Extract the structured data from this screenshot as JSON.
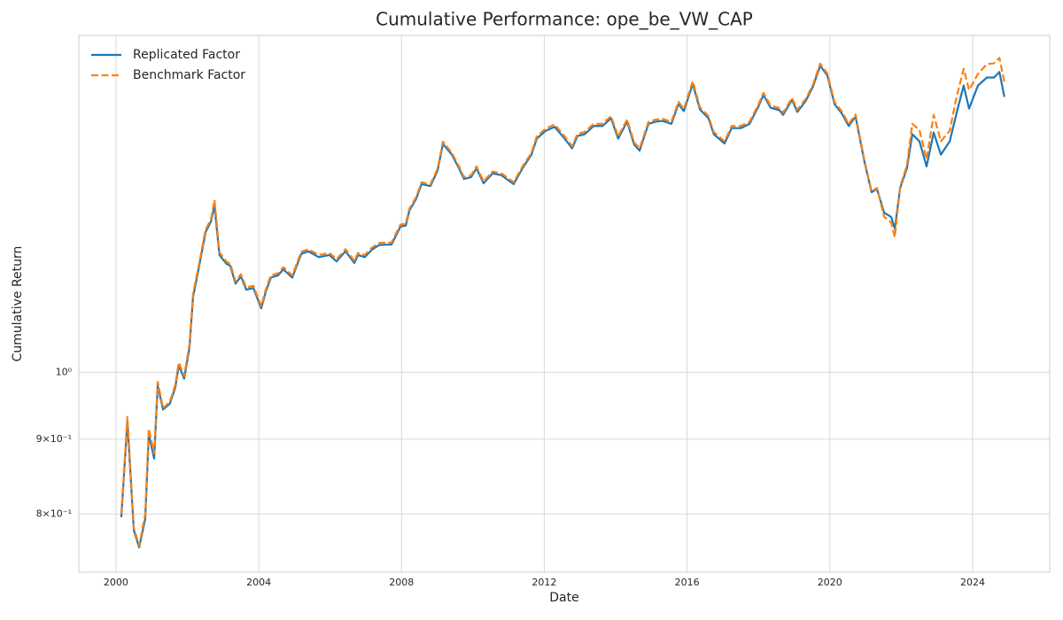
{
  "chart_data": {
    "type": "line",
    "title": "Cumulative Performance: ope_be_VW_CAP",
    "x_label": "Date",
    "y_label": "Cumulative Return",
    "yscale": "log",
    "grid": true,
    "legend": "upper left",
    "xlim": [
      1998.96,
      2026.16
    ],
    "xticks": [
      2000,
      2004,
      2008,
      2012,
      2016,
      2020,
      2024
    ],
    "ylim": [
      0.73,
      1.7
    ],
    "yticks": [
      {
        "value": 0.8,
        "label": "8×10⁻¹"
      },
      {
        "value": 0.9,
        "label": "9×10⁻¹"
      },
      {
        "value": 1,
        "label": "10⁰"
      }
    ],
    "x": [
      2000.15,
      2000.32,
      2000.5,
      2000.65,
      2000.82,
      2000.92,
      2001.07,
      2001.17,
      2001.32,
      2001.51,
      2001.66,
      2001.76,
      2001.91,
      2002.06,
      2002.16,
      2002.31,
      2002.51,
      2002.66,
      2002.76,
      2002.9,
      2003.1,
      2003.2,
      2003.35,
      2003.5,
      2003.65,
      2003.85,
      2004.07,
      2004.19,
      2004.34,
      2004.54,
      2004.69,
      2004.94,
      2005.19,
      2005.39,
      2005.68,
      2005.98,
      2006.18,
      2006.43,
      2006.68,
      2006.78,
      2006.97,
      2007.17,
      2007.37,
      2007.72,
      2007.97,
      2008.12,
      2008.22,
      2008.41,
      2008.56,
      2008.81,
      2009.01,
      2009.16,
      2009.41,
      2009.61,
      2009.75,
      2009.95,
      2010.1,
      2010.3,
      2010.55,
      2010.8,
      2011.14,
      2011.39,
      2011.64,
      2011.79,
      2012.04,
      2012.29,
      2012.53,
      2012.78,
      2012.93,
      2013.13,
      2013.38,
      2013.63,
      2013.87,
      2014.07,
      2014.32,
      2014.52,
      2014.67,
      2014.92,
      2015.12,
      2015.31,
      2015.56,
      2015.76,
      2015.91,
      2016.16,
      2016.36,
      2016.6,
      2016.75,
      2017.05,
      2017.25,
      2017.5,
      2017.75,
      2018.0,
      2018.14,
      2018.34,
      2018.59,
      2018.69,
      2018.94,
      2019.09,
      2019.33,
      2019.53,
      2019.73,
      2019.93,
      2020.13,
      2020.33,
      2020.53,
      2020.72,
      2020.97,
      2021.17,
      2021.32,
      2021.52,
      2021.72,
      2021.82,
      2021.97,
      2022.16,
      2022.31,
      2022.51,
      2022.71,
      2022.91,
      2023.11,
      2023.36,
      2023.55,
      2023.75,
      2023.9,
      2024.15,
      2024.4,
      2024.6,
      2024.75,
      2024.89
    ],
    "series": [
      {
        "name": "Replicated Factor",
        "color": "#1f77b4",
        "dash": "solid",
        "values": [
          0.796,
          0.926,
          0.78,
          0.759,
          0.794,
          0.907,
          0.873,
          0.979,
          0.943,
          0.952,
          0.976,
          1.011,
          0.99,
          1.04,
          1.126,
          1.175,
          1.247,
          1.268,
          1.3,
          1.203,
          1.186,
          1.183,
          1.15,
          1.163,
          1.139,
          1.142,
          1.106,
          1.134,
          1.161,
          1.165,
          1.176,
          1.161,
          1.205,
          1.21,
          1.199,
          1.203,
          1.191,
          1.21,
          1.188,
          1.203,
          1.199,
          1.213,
          1.222,
          1.223,
          1.258,
          1.26,
          1.29,
          1.314,
          1.345,
          1.341,
          1.374,
          1.433,
          1.409,
          1.379,
          1.356,
          1.36,
          1.379,
          1.347,
          1.368,
          1.364,
          1.345,
          1.379,
          1.409,
          1.445,
          1.463,
          1.472,
          1.449,
          1.423,
          1.451,
          1.455,
          1.474,
          1.474,
          1.492,
          1.445,
          1.484,
          1.431,
          1.418,
          1.479,
          1.484,
          1.486,
          1.479,
          1.526,
          1.509,
          1.575,
          1.513,
          1.492,
          1.455,
          1.434,
          1.469,
          1.469,
          1.479,
          1.52,
          1.548,
          1.517,
          1.511,
          1.5,
          1.536,
          1.507,
          1.534,
          1.569,
          1.621,
          1.596,
          1.526,
          1.504,
          1.474,
          1.496,
          1.393,
          1.328,
          1.335,
          1.286,
          1.277,
          1.254,
          1.337,
          1.379,
          1.455,
          1.439,
          1.383,
          1.459,
          1.409,
          1.439,
          1.504,
          1.571,
          1.515,
          1.571,
          1.591,
          1.591,
          1.605,
          1.543
        ]
      },
      {
        "name": "Benchmark Factor",
        "color": "#ff7f0e",
        "dash": "dashed",
        "values": [
          0.8,
          0.932,
          0.783,
          0.761,
          0.8,
          0.915,
          0.88,
          0.985,
          0.945,
          0.955,
          0.98,
          1.016,
          0.994,
          1.045,
          1.132,
          1.18,
          1.252,
          1.272,
          1.312,
          1.208,
          1.19,
          1.187,
          1.154,
          1.167,
          1.143,
          1.146,
          1.11,
          1.138,
          1.165,
          1.169,
          1.18,
          1.165,
          1.209,
          1.214,
          1.203,
          1.207,
          1.195,
          1.214,
          1.192,
          1.207,
          1.203,
          1.217,
          1.226,
          1.227,
          1.262,
          1.264,
          1.294,
          1.318,
          1.349,
          1.345,
          1.378,
          1.438,
          1.413,
          1.383,
          1.36,
          1.364,
          1.383,
          1.351,
          1.372,
          1.368,
          1.349,
          1.383,
          1.413,
          1.45,
          1.468,
          1.478,
          1.454,
          1.428,
          1.456,
          1.46,
          1.479,
          1.479,
          1.497,
          1.45,
          1.489,
          1.436,
          1.423,
          1.484,
          1.489,
          1.491,
          1.484,
          1.531,
          1.514,
          1.582,
          1.518,
          1.497,
          1.46,
          1.439,
          1.474,
          1.474,
          1.484,
          1.525,
          1.553,
          1.522,
          1.516,
          1.505,
          1.541,
          1.512,
          1.539,
          1.574,
          1.626,
          1.601,
          1.531,
          1.509,
          1.479,
          1.501,
          1.396,
          1.33,
          1.337,
          1.278,
          1.266,
          1.237,
          1.34,
          1.385,
          1.479,
          1.465,
          1.399,
          1.5,
          1.439,
          1.463,
          1.543,
          1.613,
          1.56,
          1.6,
          1.625,
          1.627,
          1.641,
          1.58
        ]
      }
    ]
  }
}
